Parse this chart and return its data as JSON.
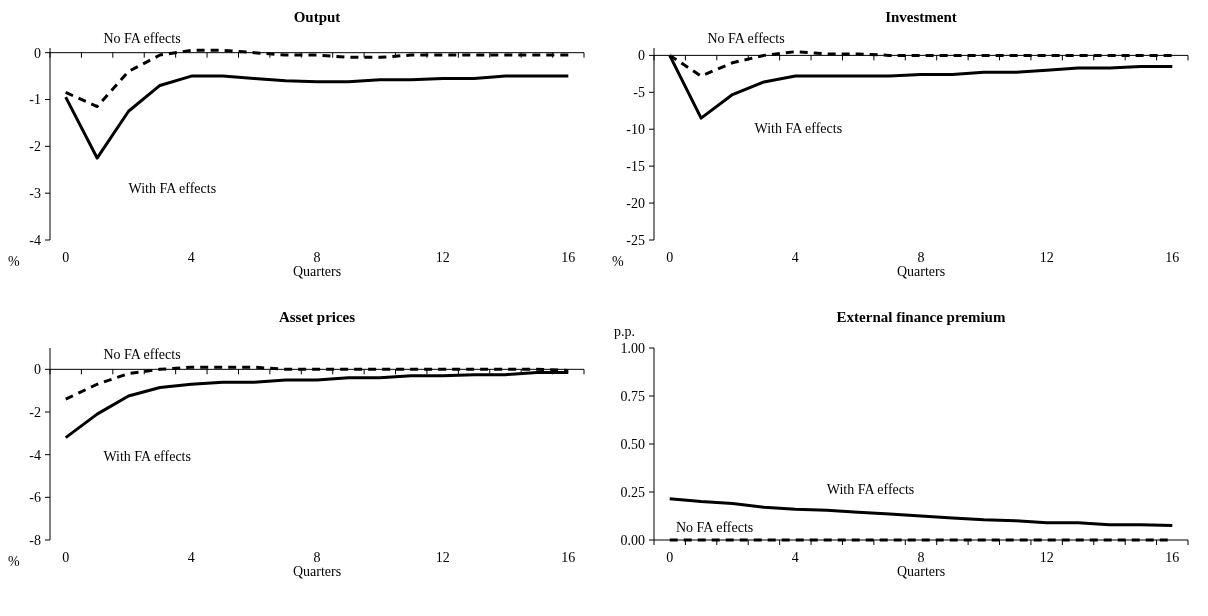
{
  "chart_data": [
    {
      "type": "line",
      "title": "Output",
      "xlabel": "Quarters",
      "ylabel": "%",
      "x": [
        0,
        1,
        2,
        3,
        4,
        5,
        6,
        7,
        8,
        9,
        10,
        11,
        12,
        13,
        14,
        15,
        16
      ],
      "xlim": [
        -0.5,
        16.5
      ],
      "xticks": [
        0,
        4,
        8,
        12,
        16
      ],
      "ylim": [
        -4,
        0.1
      ],
      "yticks": [
        -4,
        -3,
        -2,
        -1,
        0
      ],
      "series": [
        {
          "name": "No FA effects",
          "color": "#000000",
          "line_style": "dashed",
          "values": [
            -0.85,
            -1.15,
            -0.4,
            -0.05,
            0.05,
            0.05,
            0,
            -0.05,
            -0.05,
            -0.1,
            -0.1,
            -0.05,
            -0.05,
            -0.05,
            -0.05,
            -0.05,
            -0.05
          ]
        },
        {
          "name": "With FA effects",
          "color": "#000000",
          "line_style": "solid",
          "values": [
            -0.95,
            -2.25,
            -1.25,
            -0.7,
            -0.5,
            -0.5,
            -0.55,
            -0.6,
            -0.62,
            -0.62,
            -0.58,
            -0.58,
            -0.55,
            -0.55,
            -0.5,
            -0.5,
            -0.5
          ]
        }
      ]
    },
    {
      "type": "line",
      "title": "Investment",
      "xlabel": "Quarters",
      "ylabel": "%",
      "x": [
        0,
        1,
        2,
        3,
        4,
        5,
        6,
        7,
        8,
        9,
        10,
        11,
        12,
        13,
        14,
        15,
        16
      ],
      "xlim": [
        -0.5,
        16.5
      ],
      "xticks": [
        0,
        4,
        8,
        12,
        16
      ],
      "ylim": [
        -25,
        1
      ],
      "yticks": [
        -25,
        -20,
        -15,
        -10,
        -5,
        0
      ],
      "series": [
        {
          "name": "No FA effects",
          "color": "#000000",
          "line_style": "dashed",
          "values": [
            0,
            -2.8,
            -1,
            0,
            0.5,
            0.2,
            0.2,
            0,
            0,
            0,
            0,
            0,
            0,
            0,
            0,
            0,
            0
          ]
        },
        {
          "name": "With FA effects",
          "color": "#000000",
          "line_style": "solid",
          "values": [
            0,
            -8.5,
            -5.3,
            -3.6,
            -2.8,
            -2.8,
            -2.8,
            -2.8,
            -2.6,
            -2.6,
            -2.3,
            -2.3,
            -2,
            -1.7,
            -1.7,
            -1.5,
            -1.5
          ]
        }
      ]
    },
    {
      "type": "line",
      "title": "Asset prices",
      "xlabel": "Quarters",
      "ylabel": "%",
      "x": [
        0,
        1,
        2,
        3,
        4,
        5,
        6,
        7,
        8,
        9,
        10,
        11,
        12,
        13,
        14,
        15,
        16
      ],
      "xlim": [
        -0.5,
        16.5
      ],
      "xticks": [
        0,
        4,
        8,
        12,
        16
      ],
      "ylim": [
        -8,
        1
      ],
      "yticks": [
        -8,
        -6,
        -4,
        -2,
        0
      ],
      "series": [
        {
          "name": "No FA effects",
          "color": "#000000",
          "line_style": "dashed",
          "values": [
            -1.4,
            -0.7,
            -0.2,
            0,
            0.1,
            0.1,
            0.1,
            0,
            0,
            0,
            0,
            0,
            0,
            0,
            0,
            0,
            -0.05
          ]
        },
        {
          "name": "With FA effects",
          "color": "#000000",
          "line_style": "solid",
          "values": [
            -3.2,
            -2.1,
            -1.25,
            -0.85,
            -0.7,
            -0.6,
            -0.6,
            -0.5,
            -0.5,
            -0.4,
            -0.4,
            -0.3,
            -0.3,
            -0.25,
            -0.25,
            -0.15,
            -0.15
          ]
        }
      ]
    },
    {
      "type": "line",
      "title": "External finance premium",
      "xlabel": "Quarters",
      "ylabel": "p.p.",
      "x": [
        0,
        1,
        2,
        3,
        4,
        5,
        6,
        7,
        8,
        9,
        10,
        11,
        12,
        13,
        14,
        15,
        16
      ],
      "xlim": [
        -0.5,
        16.5
      ],
      "xticks": [
        0,
        4,
        8,
        12,
        16
      ],
      "ylim": [
        0,
        1
      ],
      "yticks": [
        {
          "value": 0,
          "label": "0.00"
        },
        {
          "value": 0.25,
          "label": "0.25"
        },
        {
          "value": 0.5,
          "label": "0.50"
        },
        {
          "value": 0.75,
          "label": "0.75"
        },
        {
          "value": 1,
          "label": "1.00"
        }
      ],
      "series": [
        {
          "name": "No FA effects",
          "color": "#000000",
          "line_style": "dashed",
          "values": [
            0,
            0,
            0,
            0,
            0,
            0,
            0,
            0,
            0,
            0,
            0,
            0,
            0,
            0,
            0,
            0,
            0
          ]
        },
        {
          "name": "With FA effects",
          "color": "#000000",
          "line_style": "solid",
          "values": [
            0.215,
            0.2,
            0.19,
            0.17,
            0.16,
            0.155,
            0.145,
            0.135,
            0.125,
            0.115,
            0.105,
            0.1,
            0.09,
            0.09,
            0.08,
            0.08,
            0.075
          ]
        }
      ]
    }
  ]
}
